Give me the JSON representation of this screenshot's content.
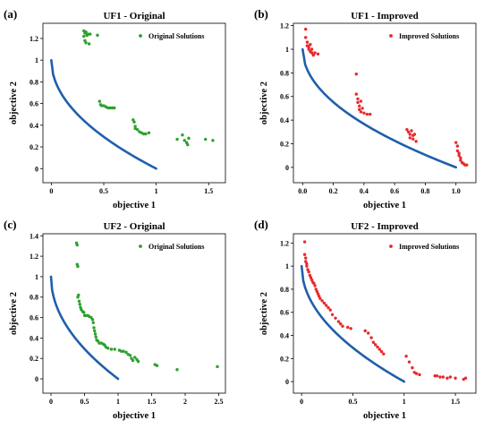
{
  "colors": {
    "front": "#1f5fab",
    "original": "#2ca02c",
    "improved": "#e8292c",
    "frame": "#000000"
  },
  "chart_data": [
    {
      "type": "scatter",
      "panel_label": "(a)",
      "title": "UF1 - Original",
      "xlabel": "objective 1",
      "ylabel": "objective 2",
      "xlim": [
        -0.08,
        1.66
      ],
      "ylim": [
        -0.13,
        1.34
      ],
      "xticks": [
        0,
        0.5,
        1,
        1.5
      ],
      "xtick_labels": [
        "0",
        "0.5",
        "1",
        "1.5"
      ],
      "yticks": [
        0,
        0.2,
        0.4,
        0.6,
        0.8,
        1,
        1.2
      ],
      "ytick_labels": [
        "0",
        "0.2",
        "0.4",
        "0.6",
        "0.8",
        "1",
        "1.2"
      ],
      "legend": {
        "label": "Original Solutions",
        "loc": "upper right"
      },
      "pareto_front": "y = 1 - sqrt(x)",
      "series": [
        {
          "name": "Original Solutions",
          "x": [
            0.31,
            0.33,
            0.32,
            0.35,
            0.37,
            0.34,
            0.31,
            0.34,
            0.44,
            0.32,
            0.33,
            0.36,
            0.46,
            0.47,
            0.48,
            0.5,
            0.52,
            0.54,
            0.56,
            0.58,
            0.6,
            0.78,
            0.79,
            0.8,
            0.8,
            0.82,
            0.84,
            0.86,
            0.88,
            0.9,
            0.93,
            1.2,
            1.25,
            1.27,
            1.29,
            1.3,
            1.31,
            1.47,
            1.54
          ],
          "y": [
            1.27,
            1.26,
            1.25,
            1.24,
            1.24,
            1.23,
            1.22,
            1.23,
            1.23,
            1.18,
            1.16,
            1.15,
            0.62,
            0.59,
            0.58,
            0.58,
            0.57,
            0.56,
            0.56,
            0.56,
            0.56,
            0.45,
            0.43,
            0.39,
            0.37,
            0.36,
            0.34,
            0.33,
            0.32,
            0.32,
            0.33,
            0.27,
            0.31,
            0.26,
            0.24,
            0.22,
            0.28,
            0.27,
            0.26
          ]
        }
      ]
    },
    {
      "type": "scatter",
      "panel_label": "(b)",
      "title": "UF1 - Improved",
      "xlabel": "objective 1",
      "ylabel": "objective 2",
      "xlim": [
        -0.06,
        1.13
      ],
      "ylim": [
        -0.13,
        1.22
      ],
      "xticks": [
        0,
        0.2,
        0.4,
        0.6,
        0.8,
        1
      ],
      "xtick_labels": [
        "0.0",
        "0.2",
        "0.4",
        "0.6",
        "0.8",
        "1.0"
      ],
      "yticks": [
        0,
        0.2,
        0.4,
        0.6,
        0.8,
        1,
        1.2
      ],
      "ytick_labels": [
        "0",
        "0.2",
        "0.4",
        "0.6",
        "0.8",
        "1",
        "1.2"
      ],
      "legend": {
        "label": "Improved Solutions",
        "loc": "upper right"
      },
      "pareto_front": "y = 1 - sqrt(x)",
      "series": [
        {
          "name": "Improved Solutions",
          "x": [
            0.02,
            0.02,
            0.03,
            0.03,
            0.04,
            0.04,
            0.05,
            0.05,
            0.06,
            0.06,
            0.07,
            0.08,
            0.1,
            0.35,
            0.35,
            0.36,
            0.36,
            0.37,
            0.37,
            0.38,
            0.38,
            0.39,
            0.4,
            0.42,
            0.44,
            0.68,
            0.69,
            0.7,
            0.7,
            0.71,
            0.72,
            0.72,
            0.73,
            0.74,
            1.0,
            1.01,
            1.01,
            1.02,
            1.02,
            1.03,
            1.03,
            1.04,
            1.05,
            1.06,
            1.07
          ],
          "y": [
            1.17,
            1.1,
            1.06,
            1.03,
            1.02,
            1.0,
            0.98,
            1.04,
            0.97,
            1.0,
            0.95,
            0.97,
            0.96,
            0.79,
            0.62,
            0.58,
            0.55,
            0.52,
            0.49,
            0.56,
            0.47,
            0.5,
            0.46,
            0.45,
            0.45,
            0.32,
            0.3,
            0.28,
            0.25,
            0.31,
            0.27,
            0.24,
            0.28,
            0.22,
            0.21,
            0.18,
            0.14,
            0.12,
            0.1,
            0.08,
            0.06,
            0.04,
            0.03,
            0.02,
            0.02
          ]
        }
      ]
    },
    {
      "type": "scatter",
      "panel_label": "(c)",
      "title": "UF2 - Original",
      "xlabel": "objective 1",
      "ylabel": "objective 2",
      "xlim": [
        -0.12,
        2.6
      ],
      "ylim": [
        -0.14,
        1.42
      ],
      "xticks": [
        0,
        0.5,
        1,
        1.5,
        2,
        2.5
      ],
      "xtick_labels": [
        "0",
        "0.5",
        "1",
        "1.5",
        "2",
        "2.5"
      ],
      "yticks": [
        0,
        0.2,
        0.4,
        0.6,
        0.8,
        1,
        1.2,
        1.4
      ],
      "ytick_labels": [
        "0",
        "0.2",
        "0.4",
        "0.6",
        "0.8",
        "1",
        "1.2",
        "1.4"
      ],
      "legend": {
        "label": "Original Solutions",
        "loc": "upper right"
      },
      "pareto_front": "y = 1 - sqrt(x)",
      "series": [
        {
          "name": "Original Solutions",
          "x": [
            0.38,
            0.39,
            0.39,
            0.4,
            0.4,
            0.41,
            0.42,
            0.43,
            0.44,
            0.45,
            0.47,
            0.49,
            0.5,
            0.52,
            0.55,
            0.57,
            0.6,
            0.62,
            0.63,
            0.64,
            0.65,
            0.66,
            0.67,
            0.68,
            0.7,
            0.72,
            0.75,
            0.78,
            0.8,
            0.82,
            0.85,
            0.9,
            0.95,
            1.02,
            1.05,
            1.08,
            1.12,
            1.15,
            1.18,
            1.2,
            1.22,
            1.25,
            1.28,
            1.3,
            1.55,
            1.58,
            1.88,
            2.48
          ],
          "y": [
            1.33,
            1.31,
            1.12,
            1.1,
            0.8,
            0.82,
            0.76,
            0.73,
            0.7,
            0.68,
            0.66,
            0.65,
            0.62,
            0.62,
            0.62,
            0.61,
            0.6,
            0.58,
            0.55,
            0.5,
            0.47,
            0.44,
            0.41,
            0.38,
            0.37,
            0.35,
            0.35,
            0.34,
            0.33,
            0.31,
            0.3,
            0.29,
            0.29,
            0.28,
            0.27,
            0.27,
            0.26,
            0.24,
            0.23,
            0.2,
            0.18,
            0.21,
            0.19,
            0.17,
            0.14,
            0.13,
            0.09,
            0.12
          ]
        }
      ]
    },
    {
      "type": "scatter",
      "panel_label": "(d)",
      "title": "UF2 - Improved",
      "xlabel": "objective 1",
      "ylabel": "objective 2",
      "xlim": [
        -0.08,
        1.7
      ],
      "ylim": [
        -0.1,
        1.28
      ],
      "xticks": [
        0,
        0.5,
        1,
        1.5
      ],
      "xtick_labels": [
        "0",
        "0.5",
        "1",
        "1.5"
      ],
      "yticks": [
        0,
        0.2,
        0.4,
        0.6,
        0.8,
        1,
        1.2
      ],
      "ytick_labels": [
        "0",
        "0.2",
        "0.4",
        "0.6",
        "0.8",
        "1",
        "1.2"
      ],
      "legend": {
        "label": "Improved Solutions",
        "loc": "upper right"
      },
      "pareto_front": "y = 1 - sqrt(x)",
      "series": [
        {
          "name": "Improved Solutions",
          "x": [
            0.03,
            0.03,
            0.04,
            0.04,
            0.05,
            0.05,
            0.06,
            0.07,
            0.08,
            0.09,
            0.1,
            0.11,
            0.12,
            0.13,
            0.14,
            0.15,
            0.16,
            0.17,
            0.18,
            0.2,
            0.22,
            0.24,
            0.26,
            0.28,
            0.3,
            0.33,
            0.36,
            0.38,
            0.4,
            0.45,
            0.48,
            0.62,
            0.65,
            0.68,
            0.7,
            0.72,
            0.74,
            0.76,
            0.78,
            0.8,
            1.02,
            1.05,
            1.08,
            1.1,
            1.12,
            1.15,
            1.3,
            1.32,
            1.35,
            1.38,
            1.42,
            1.45,
            1.5,
            1.58,
            1.6
          ],
          "y": [
            1.21,
            1.1,
            1.07,
            1.04,
            1.02,
            1.0,
            0.97,
            0.95,
            0.92,
            0.9,
            0.88,
            0.86,
            0.85,
            0.83,
            0.8,
            0.78,
            0.76,
            0.74,
            0.72,
            0.7,
            0.68,
            0.66,
            0.64,
            0.62,
            0.58,
            0.55,
            0.52,
            0.5,
            0.48,
            0.47,
            0.46,
            0.44,
            0.42,
            0.38,
            0.34,
            0.32,
            0.3,
            0.28,
            0.26,
            0.24,
            0.22,
            0.17,
            0.12,
            0.08,
            0.07,
            0.06,
            0.05,
            0.05,
            0.04,
            0.04,
            0.03,
            0.04,
            0.03,
            0.02,
            0.03
          ]
        }
      ]
    }
  ]
}
